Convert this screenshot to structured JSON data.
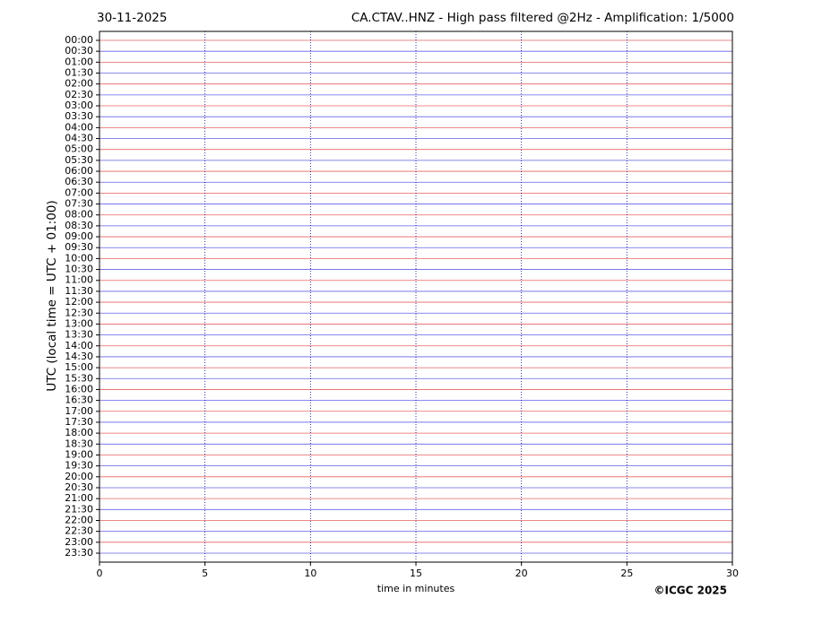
{
  "chart_data": {
    "type": "helicorder",
    "date": "30-11-2025",
    "title": "CA.CTAV..HNZ - High pass filtered @2Hz - Amplification: 1/5000",
    "ylabel": "UTC (local time = UTC + 01:00)",
    "xlabel": "time in minutes",
    "copyright": "©ICGC 2025",
    "categories": [
      "00:00",
      "00:30",
      "01:00",
      "01:30",
      "02:00",
      "02:30",
      "03:00",
      "03:30",
      "04:00",
      "04:30",
      "05:00",
      "05:30",
      "06:00",
      "06:30",
      "07:00",
      "07:30",
      "08:00",
      "08:30",
      "09:00",
      "09:30",
      "10:00",
      "10:30",
      "11:00",
      "11:30",
      "12:00",
      "12:30",
      "13:00",
      "13:30",
      "14:00",
      "14:30",
      "15:00",
      "15:30",
      "16:00",
      "16:30",
      "17:00",
      "17:30",
      "18:00",
      "18:30",
      "19:00",
      "19:30",
      "20:00",
      "20:30",
      "21:00",
      "21:30",
      "22:00",
      "22:30",
      "23:00",
      "23:30"
    ],
    "colors": [
      "#e02020",
      "#2020e0"
    ],
    "xlim": [
      0,
      30
    ],
    "xticks": [
      0,
      5,
      10,
      15,
      20,
      25,
      30
    ],
    "grid": true
  }
}
